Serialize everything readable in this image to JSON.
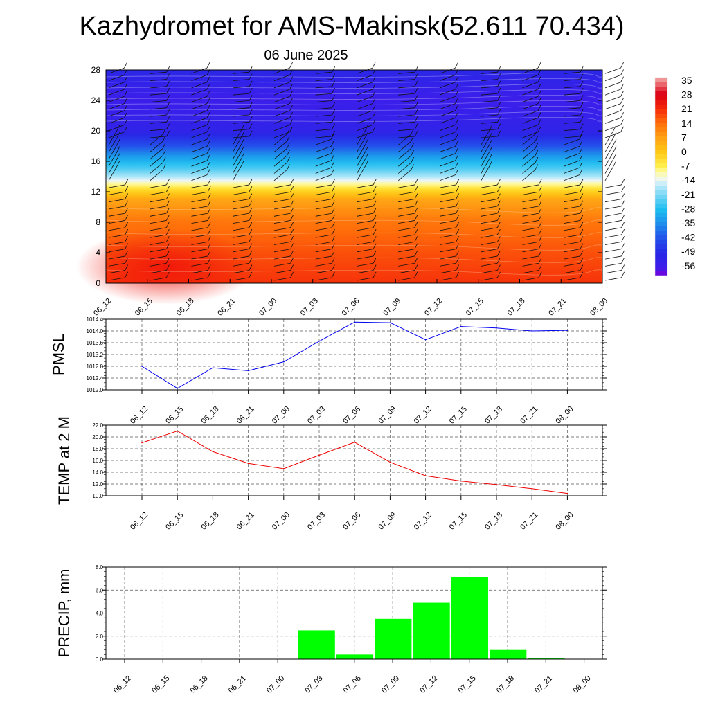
{
  "title": "Kazhydromet for AMS-Makinsk(52.611 70.434)",
  "subtitle": "06 June 2025",
  "time_labels": [
    "06_12",
    "06_15",
    "06_18",
    "06_21",
    "07_00",
    "07_03",
    "07_06",
    "07_09",
    "07_12",
    "07_15",
    "07_18",
    "07_21",
    "08_00"
  ],
  "colors": {
    "pmsl_line": "#0000ee",
    "temp_line": "#ee0000",
    "precip_bar": "#00ff00",
    "grid": "#555555"
  },
  "chart_data": [
    {
      "type": "heatmap",
      "description_key": "profile",
      "x": [
        "06_12",
        "06_15",
        "06_18",
        "06_21",
        "07_00",
        "07_03",
        "07_06",
        "07_09",
        "07_12",
        "07_15",
        "07_18",
        "07_21",
        "08_00"
      ],
      "ylim": [
        0,
        28
      ],
      "yticks": [
        0,
        4,
        8,
        12,
        16,
        20,
        24,
        28
      ],
      "colorbar_ticks": [
        35,
        28,
        21,
        14,
        7,
        0,
        -7,
        -14,
        -21,
        -28,
        -35,
        -42,
        -49,
        -56
      ],
      "vertical_profile": [
        {
          "y": 0,
          "value": 20
        },
        {
          "y": 4,
          "value": 17
        },
        {
          "y": 8,
          "value": 13
        },
        {
          "y": 11,
          "value": 6
        },
        {
          "y": 12.5,
          "value": -5
        },
        {
          "y": 13.5,
          "value": -14
        },
        {
          "y": 15,
          "value": -24
        },
        {
          "y": 16.5,
          "value": -32
        },
        {
          "y": 18,
          "value": -42
        },
        {
          "y": 20,
          "value": -52
        },
        {
          "y": 24,
          "value": -56
        },
        {
          "y": 28,
          "value": -50
        }
      ],
      "wind_barbs": true
    },
    {
      "type": "line",
      "ylabel": "PMSL",
      "x": [
        "06_12",
        "06_15",
        "06_18",
        "06_21",
        "07_00",
        "07_03",
        "07_06",
        "07_09",
        "07_12",
        "07_15",
        "07_18",
        "07_21",
        "08_00"
      ],
      "values": [
        1012.8,
        1012.05,
        1012.75,
        1012.65,
        1012.95,
        1013.65,
        1014.3,
        1014.28,
        1013.7,
        1014.15,
        1014.1,
        1014.0,
        1014.02
      ],
      "ylim": [
        1012.0,
        1014.4
      ],
      "yticks": [
        "1012.0",
        "1012.4",
        "1012.8",
        "1013.2",
        "1013.6",
        "1014.0",
        "1014.4"
      ],
      "grid": true
    },
    {
      "type": "line",
      "ylabel": "TEMP at 2 M",
      "x": [
        "06_12",
        "06_15",
        "06_18",
        "06_21",
        "07_00",
        "07_03",
        "07_06",
        "07_09",
        "07_12",
        "07_15",
        "07_18",
        "07_21",
        "08_00"
      ],
      "values": [
        19.0,
        21.0,
        17.5,
        15.5,
        14.6,
        16.9,
        19.1,
        15.7,
        13.4,
        12.5,
        11.9,
        11.2,
        10.4
      ],
      "ylim": [
        10.0,
        22.0
      ],
      "yticks": [
        "10.0",
        "12.0",
        "14.0",
        "16.0",
        "18.0",
        "20.0",
        "22.0"
      ],
      "grid": true
    },
    {
      "type": "bar",
      "ylabel": "PRECIP, mm",
      "x": [
        "06_12",
        "06_15",
        "06_18",
        "06_21",
        "07_00",
        "07_03",
        "07_06",
        "07_09",
        "07_12",
        "07_15",
        "07_18",
        "07_21",
        "08_00"
      ],
      "values": [
        0,
        0,
        0,
        0,
        0,
        2.5,
        0.4,
        3.5,
        4.9,
        7.1,
        0.8,
        0.1,
        0
      ],
      "ylim": [
        0,
        8.0
      ],
      "yticks": [
        "0.0",
        "2.0",
        "4.0",
        "6.0",
        "8.0"
      ],
      "grid": true
    }
  ]
}
